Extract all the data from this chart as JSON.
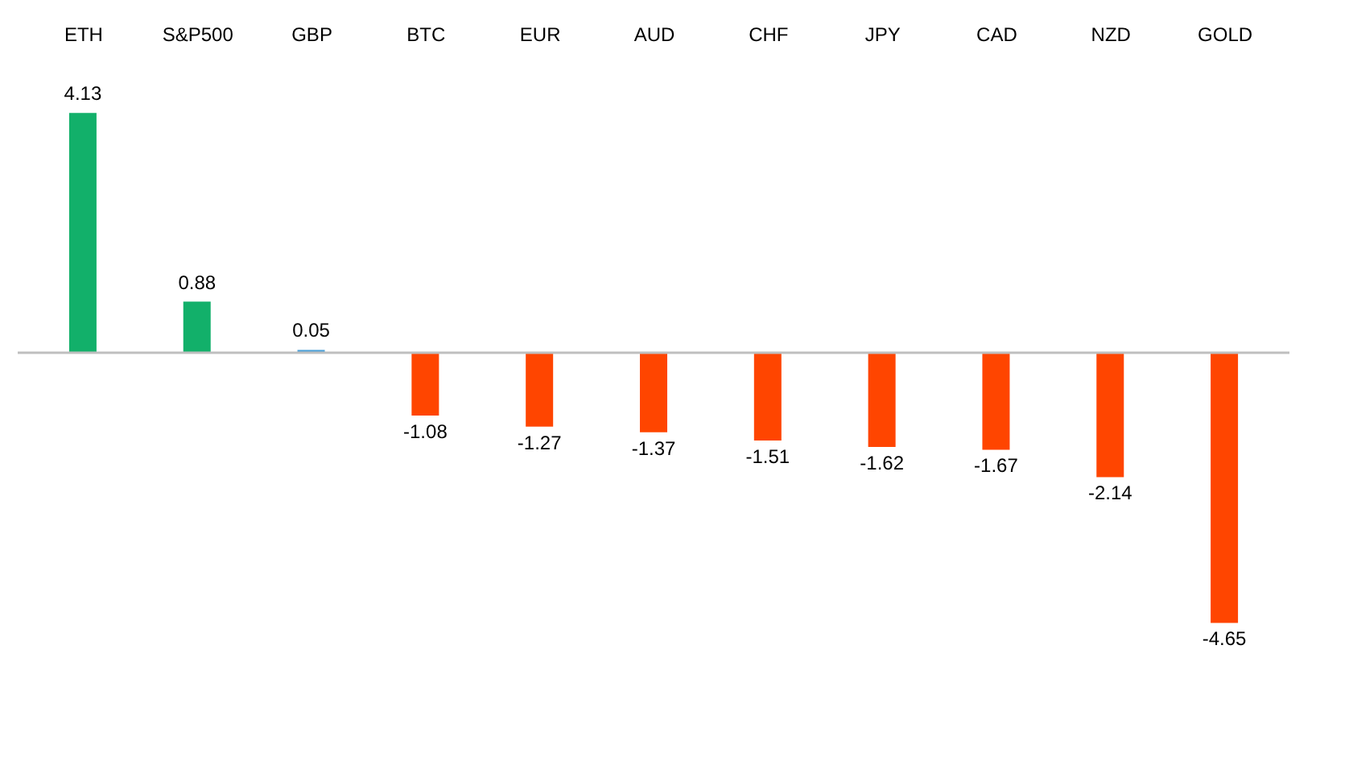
{
  "chart_data": {
    "type": "bar",
    "categories": [
      "ETH",
      "S&P500",
      "GBP",
      "BTC",
      "EUR",
      "AUD",
      "CHF",
      "JPY",
      "CAD",
      "NZD",
      "GOLD"
    ],
    "values": [
      4.13,
      0.88,
      0.05,
      -1.08,
      -1.27,
      -1.37,
      -1.51,
      -1.62,
      -1.67,
      -2.14,
      -4.65
    ],
    "colors": [
      "#12b06a",
      "#12b06a",
      "#4a9fd8",
      "#ff4500",
      "#ff4500",
      "#ff4500",
      "#ff4500",
      "#ff4500",
      "#ff4500",
      "#ff4500",
      "#ff4500"
    ],
    "data_labels": true,
    "grid": false
  }
}
